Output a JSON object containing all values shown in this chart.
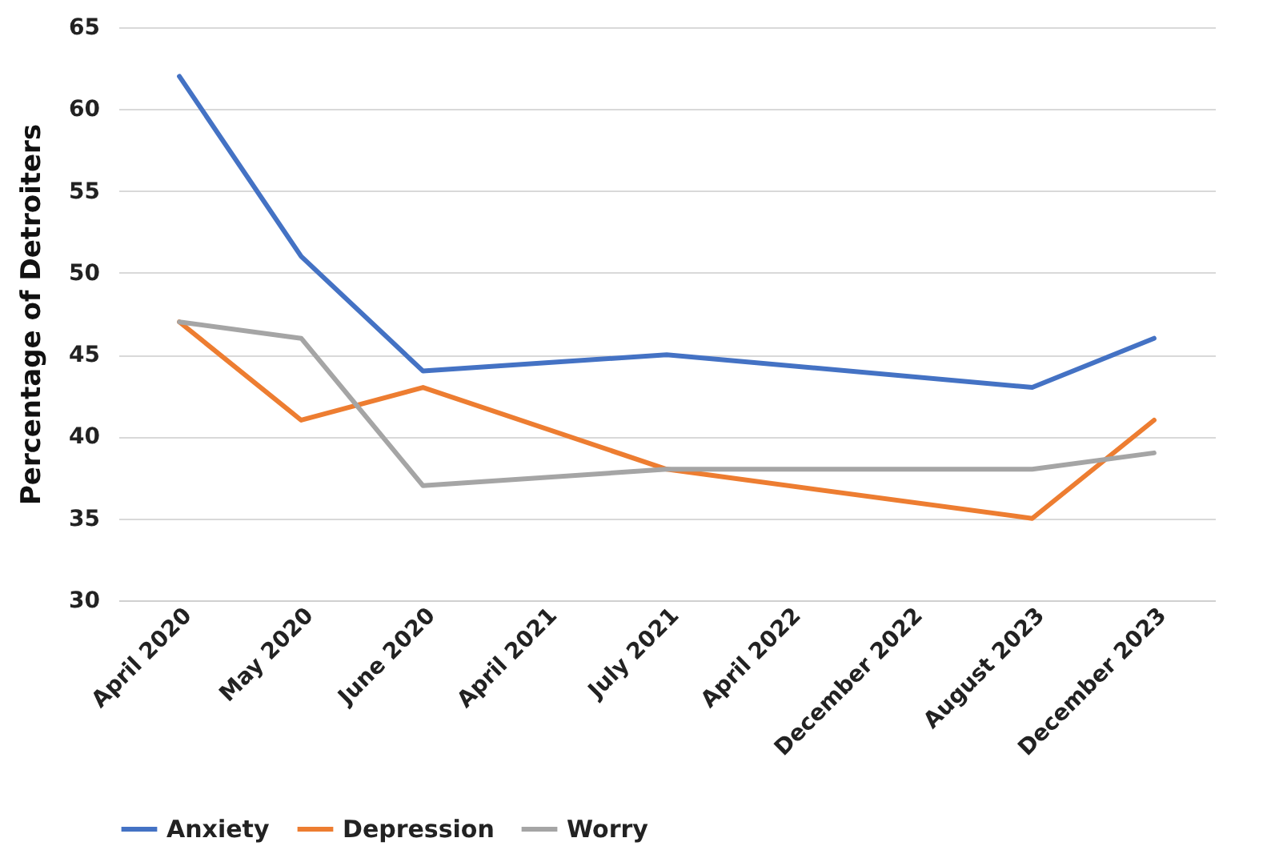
{
  "chart_data": {
    "type": "line",
    "ylabel": "Percentage of Detroiters",
    "categories": [
      "April 2020",
      "May 2020",
      "June 2020",
      "April 2021",
      "July 2021",
      "April 2022",
      "December 2022",
      "August 2023",
      "December 2023"
    ],
    "series": [
      {
        "name": "Anxiety",
        "color": "#4472c4",
        "values": [
          62,
          51,
          44,
          null,
          45,
          null,
          null,
          43,
          46
        ]
      },
      {
        "name": "Depression",
        "color": "#ed7d31",
        "values": [
          47,
          41,
          43,
          null,
          38,
          null,
          null,
          35,
          41
        ]
      },
      {
        "name": "Worry",
        "color": "#a5a5a5",
        "values": [
          47,
          46,
          37,
          null,
          38,
          null,
          null,
          38,
          39
        ]
      }
    ],
    "ylim": [
      30,
      65
    ],
    "yticks": [
      30,
      35,
      40,
      45,
      50,
      55,
      60,
      65
    ],
    "grid": "y",
    "legend": "bottom",
    "marker": "none",
    "line_style": "solid"
  }
}
